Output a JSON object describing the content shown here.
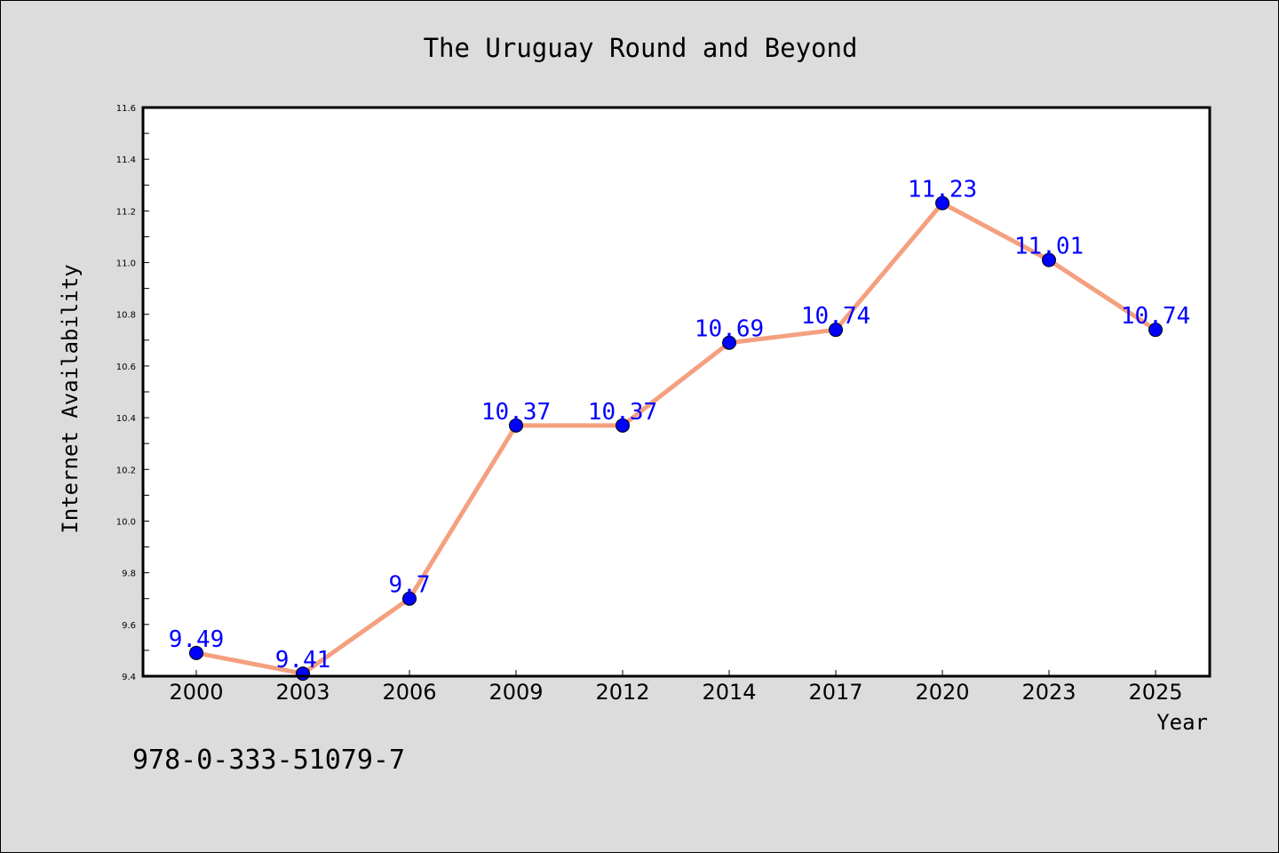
{
  "chart_data": {
    "type": "line",
    "title": "The Uruguay Round and Beyond",
    "xlabel": "Year",
    "ylabel": "Internet Availability",
    "categories": [
      "2000",
      "2003",
      "2006",
      "2009",
      "2012",
      "2014",
      "2017",
      "2020",
      "2023",
      "2025"
    ],
    "series": [
      {
        "values": [
          9.49,
          9.41,
          9.7,
          10.37,
          10.37,
          10.69,
          10.74,
          11.23,
          11.01,
          10.74
        ],
        "data_labels": [
          "9.49",
          "9.41",
          "9.7",
          "10.37",
          "10.37",
          "10.69",
          "10.74",
          "11.23",
          "11.01",
          "10.74"
        ]
      }
    ],
    "ylim": [
      9.4,
      11.6
    ],
    "yticks": [
      "9.4",
      "9.6",
      "9.8",
      "10.0",
      "10.2",
      "10.4",
      "10.6",
      "10.8",
      "11.0",
      "11.2",
      "11.4",
      "11.6"
    ],
    "grid": false,
    "legend": "none"
  },
  "footer": {
    "text": "978-0-333-51079-7"
  },
  "colors": {
    "line": "#f4a07f",
    "marker": "#0000ff",
    "label": "#0000ff",
    "plot_background": "#ffffff",
    "figure_background": "#dcdcdc"
  }
}
